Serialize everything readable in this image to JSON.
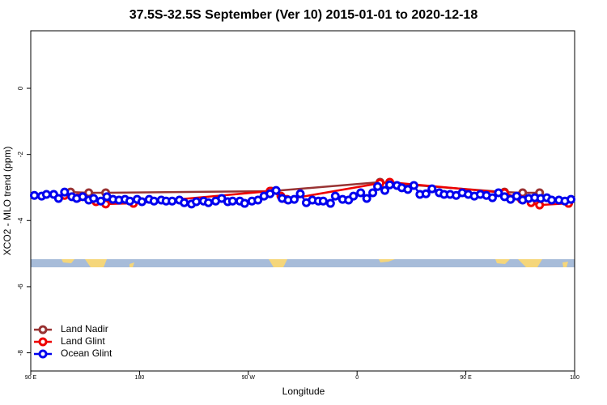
{
  "chart_data": {
    "type": "line",
    "title": "37.5S-32.5S September (Ver 10)   2015-01-01 to 2020-12-18",
    "x_label": "Longitude",
    "y_label": "XCO2 - MLO trend (ppm)",
    "xlim": [
      90,
      540
    ],
    "xticks": [
      {
        "value": 90,
        "label": "90 E"
      },
      180,
      {
        "value": 270,
        "label": "90 W"
      },
      {
        "value": 360,
        "label": "0"
      },
      {
        "value": 450,
        "label": "90 E"
      },
      {
        "value": 540,
        "label": "180"
      }
    ],
    "ylim": [
      -8.55,
      1.74
    ],
    "yticks": [
      0,
      -2,
      -4,
      -6,
      -8
    ],
    "legend": "bottom-left",
    "series": [
      {
        "name": "Land Nadir",
        "color": "#993333",
        "x": [
          123,
          138,
          152,
          289,
          379,
          387,
          482,
          497,
          511
        ],
        "values": [
          -3.14,
          -3.16,
          -3.16,
          -3.11,
          -2.84,
          -2.87,
          -3.14,
          -3.16,
          -3.16
        ]
      },
      {
        "name": "Land Glint",
        "color": "#ee0000",
        "x": [
          118,
          129,
          144,
          152,
          175,
          288,
          297,
          302,
          379,
          387,
          482,
          496,
          504,
          511,
          535
        ],
        "values": [
          -3.24,
          -3.31,
          -3.43,
          -3.5,
          -3.48,
          -3.11,
          -3.26,
          -3.36,
          -2.87,
          -2.84,
          -3.16,
          -3.36,
          -3.46,
          -3.53,
          -3.48
        ]
      },
      {
        "name": "Ocean Glint",
        "color": "#0000ee",
        "x": [
          93,
          99,
          103,
          109,
          113,
          118,
          124,
          128,
          133,
          138,
          142,
          148,
          153,
          158,
          163,
          168,
          172,
          178,
          182,
          188,
          192,
          198,
          202,
          207,
          213,
          217,
          223,
          227,
          233,
          237,
          243,
          248,
          253,
          257,
          263,
          267,
          273,
          278,
          283,
          288,
          293,
          298,
          303,
          308,
          313,
          318,
          323,
          328,
          332,
          338,
          342,
          348,
          353,
          357,
          363,
          368,
          373,
          377,
          383,
          387,
          393,
          397,
          402,
          407,
          412,
          417,
          422,
          428,
          432,
          437,
          442,
          447,
          452,
          457,
          462,
          467,
          472,
          477,
          482,
          487,
          492,
          497,
          502,
          507,
          512,
          517,
          521,
          527,
          532,
          537
        ],
        "values": [
          -3.24,
          -3.26,
          -3.21,
          -3.21,
          -3.33,
          -3.14,
          -3.28,
          -3.33,
          -3.28,
          -3.38,
          -3.33,
          -3.41,
          -3.28,
          -3.36,
          -3.38,
          -3.36,
          -3.41,
          -3.36,
          -3.43,
          -3.36,
          -3.41,
          -3.38,
          -3.41,
          -3.41,
          -3.38,
          -3.46,
          -3.5,
          -3.43,
          -3.41,
          -3.46,
          -3.41,
          -3.33,
          -3.43,
          -3.41,
          -3.41,
          -3.48,
          -3.41,
          -3.38,
          -3.26,
          -3.19,
          -3.09,
          -3.33,
          -3.38,
          -3.36,
          -3.19,
          -3.46,
          -3.38,
          -3.41,
          -3.41,
          -3.48,
          -3.26,
          -3.36,
          -3.38,
          -3.26,
          -3.16,
          -3.33,
          -3.16,
          -2.97,
          -3.09,
          -2.92,
          -2.94,
          -3.01,
          -3.06,
          -2.94,
          -3.21,
          -3.19,
          -3.04,
          -3.16,
          -3.21,
          -3.21,
          -3.24,
          -3.16,
          -3.21,
          -3.26,
          -3.21,
          -3.24,
          -3.31,
          -3.16,
          -3.28,
          -3.36,
          -3.26,
          -3.38,
          -3.33,
          -3.31,
          -3.33,
          -3.31,
          -3.38,
          -3.38,
          -3.41,
          -3.36
        ]
      }
    ]
  }
}
